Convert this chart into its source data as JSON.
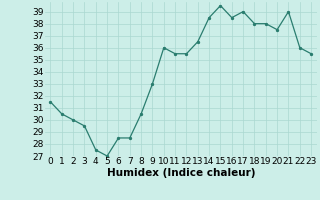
{
  "x": [
    0,
    1,
    2,
    3,
    4,
    5,
    6,
    7,
    8,
    9,
    10,
    11,
    12,
    13,
    14,
    15,
    16,
    17,
    18,
    19,
    20,
    21,
    22,
    23
  ],
  "y": [
    31.5,
    30.5,
    30.0,
    29.5,
    27.5,
    27.0,
    28.5,
    28.5,
    30.5,
    33.0,
    36.0,
    35.5,
    35.5,
    36.5,
    38.5,
    39.5,
    38.5,
    39.0,
    38.0,
    38.0,
    37.5,
    39.0,
    36.0,
    35.5
  ],
  "xlabel": "Humidex (Indice chaleur)",
  "ylim": [
    27,
    39.8
  ],
  "yticks": [
    27,
    28,
    29,
    30,
    31,
    32,
    33,
    34,
    35,
    36,
    37,
    38,
    39
  ],
  "xticks": [
    0,
    1,
    2,
    3,
    4,
    5,
    6,
    7,
    8,
    9,
    10,
    11,
    12,
    13,
    14,
    15,
    16,
    17,
    18,
    19,
    20,
    21,
    22,
    23
  ],
  "line_color": "#2a7d6f",
  "marker_color": "#2a7d6f",
  "bg_color": "#cceee8",
  "grid_color": "#aad8d0",
  "xlabel_fontsize": 7.5,
  "tick_fontsize": 6.5
}
